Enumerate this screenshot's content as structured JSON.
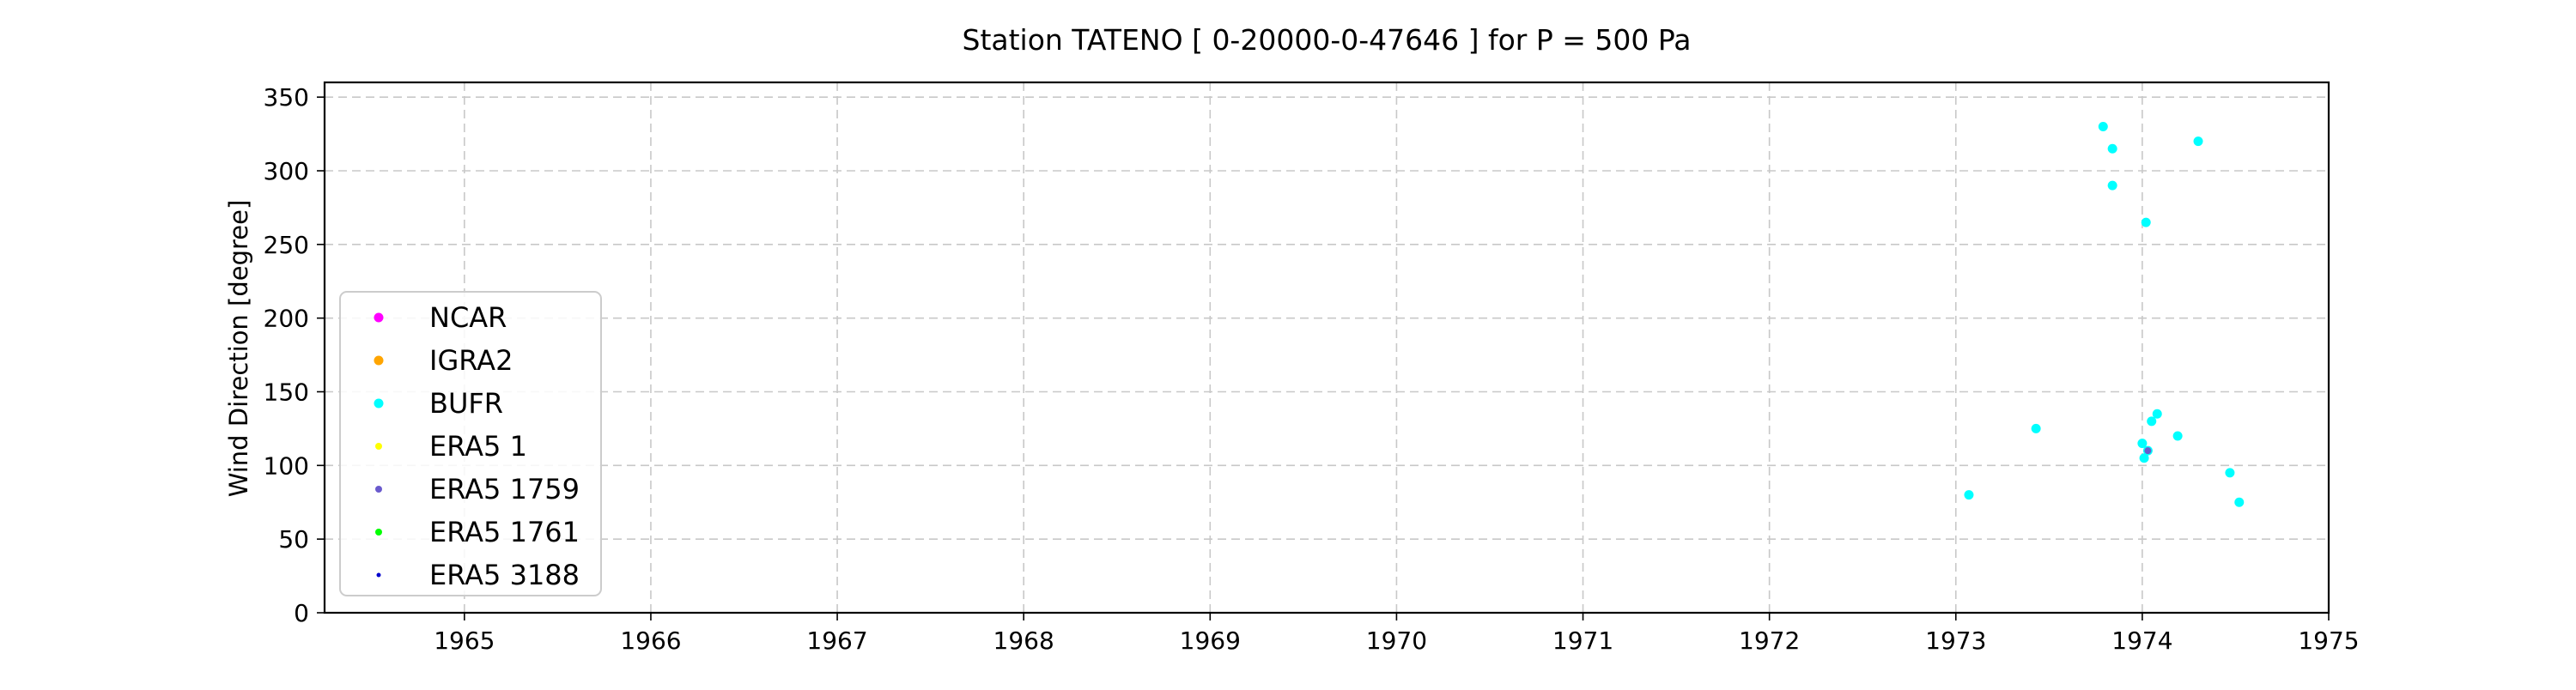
{
  "chart_data": {
    "type": "scatter",
    "title": "Station  TATENO [ 0-20000-0-47646 ]  for P = 500 Pa",
    "xlabel": "",
    "ylabel": "Wind Direction [degree]",
    "xlim": [
      1964.25,
      1975.0
    ],
    "ylim": [
      0,
      360
    ],
    "xticks": [
      "1965",
      "1966",
      "1967",
      "1968",
      "1969",
      "1970",
      "1971",
      "1972",
      "1973",
      "1974",
      "1975"
    ],
    "yticks": [
      "0",
      "50",
      "100",
      "150",
      "200",
      "250",
      "300",
      "350"
    ],
    "grid": true,
    "legend_position": "center-left",
    "series": [
      {
        "name": "NCAR",
        "color": "#ff00ff",
        "marker": "large",
        "points": []
      },
      {
        "name": "IGRA2",
        "color": "#ffa500",
        "marker": "large",
        "points": []
      },
      {
        "name": "BUFR",
        "color": "#00ffff",
        "marker": "large",
        "points": [
          {
            "x": 1973.07,
            "y": 80
          },
          {
            "x": 1973.43,
            "y": 125
          },
          {
            "x": 1973.79,
            "y": 330
          },
          {
            "x": 1973.84,
            "y": 315
          },
          {
            "x": 1973.84,
            "y": 290
          },
          {
            "x": 1974.0,
            "y": 115
          },
          {
            "x": 1974.01,
            "y": 105
          },
          {
            "x": 1974.02,
            "y": 265
          },
          {
            "x": 1974.03,
            "y": 110
          },
          {
            "x": 1974.05,
            "y": 130
          },
          {
            "x": 1974.08,
            "y": 135
          },
          {
            "x": 1974.19,
            "y": 120
          },
          {
            "x": 1974.3,
            "y": 320
          },
          {
            "x": 1974.47,
            "y": 95
          },
          {
            "x": 1974.52,
            "y": 75
          }
        ]
      },
      {
        "name": "ERA5 1",
        "color": "#ffff00",
        "marker": "small",
        "points": []
      },
      {
        "name": "ERA5 1759",
        "color": "#6a5acd",
        "marker": "small",
        "points": [
          {
            "x": 1974.03,
            "y": 110
          }
        ]
      },
      {
        "name": "ERA5 1761",
        "color": "#00ff00",
        "marker": "small",
        "points": []
      },
      {
        "name": "ERA5 3188",
        "color": "#0000cd",
        "marker": "tiny",
        "points": []
      }
    ]
  }
}
